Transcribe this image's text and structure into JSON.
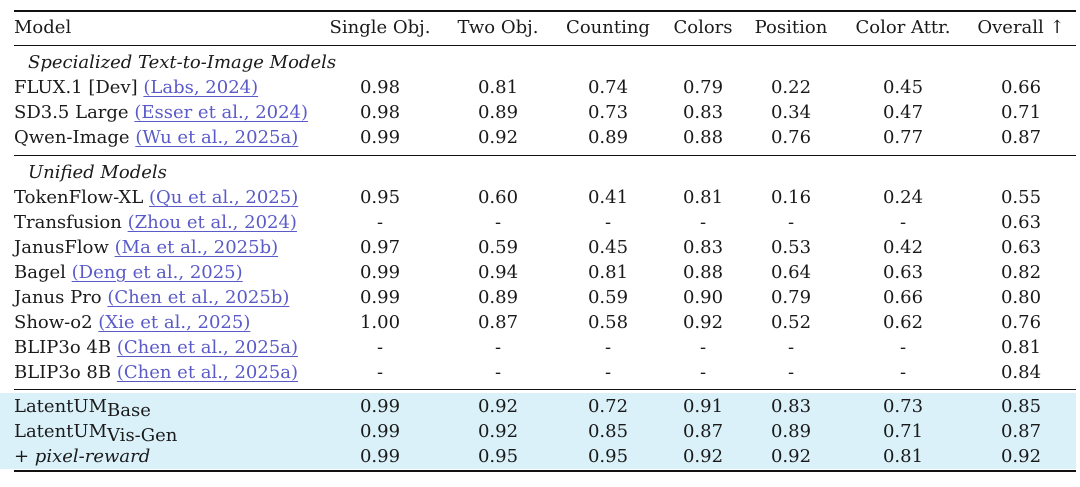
{
  "columns": [
    "Model",
    "Single Obj.",
    "Two Obj.",
    "Counting",
    "Colors",
    "Position",
    "Color Attr.",
    "Overall ↑"
  ],
  "groups": [
    {
      "title": "Specialized Text-to-Image Models",
      "rows": [
        {
          "model": "FLUX.1 [Dev]",
          "cite": "(Labs, 2024)",
          "values": [
            "0.98",
            "0.81",
            "0.74",
            "0.79",
            "0.22",
            "0.45",
            "0.66"
          ]
        },
        {
          "model": "SD3.5 Large",
          "cite": "(Esser et al., 2024)",
          "values": [
            "0.98",
            "0.89",
            "0.73",
            "0.83",
            "0.34",
            "0.47",
            "0.71"
          ]
        },
        {
          "model": "Qwen-Image",
          "cite": "(Wu et al., 2025a)",
          "values": [
            "0.99",
            "0.92",
            "0.89",
            "0.88",
            "0.76",
            "0.77",
            "0.87"
          ]
        }
      ]
    },
    {
      "title": "Unified Models",
      "rows": [
        {
          "model": "TokenFlow-XL",
          "cite": "(Qu et al., 2025)",
          "values": [
            "0.95",
            "0.60",
            "0.41",
            "0.81",
            "0.16",
            "0.24",
            "0.55"
          ]
        },
        {
          "model": "Transfusion",
          "cite": "(Zhou et al., 2024)",
          "values": [
            "-",
            "-",
            "-",
            "-",
            "-",
            "-",
            "0.63"
          ]
        },
        {
          "model": "JanusFlow",
          "cite": "(Ma et al., 2025b)",
          "values": [
            "0.97",
            "0.59",
            "0.45",
            "0.83",
            "0.53",
            "0.42",
            "0.63"
          ]
        },
        {
          "model": "Bagel",
          "cite": "(Deng et al., 2025)",
          "values": [
            "0.99",
            "0.94",
            "0.81",
            "0.88",
            "0.64",
            "0.63",
            "0.82"
          ]
        },
        {
          "model": "Janus Pro",
          "cite": "(Chen et al., 2025b)",
          "values": [
            "0.99",
            "0.89",
            "0.59",
            "0.90",
            "0.79",
            "0.66",
            "0.80"
          ]
        },
        {
          "model": "Show-o2",
          "cite": "(Xie et al., 2025)",
          "values": [
            "1.00",
            "0.87",
            "0.58",
            "0.92",
            "0.52",
            "0.62",
            "0.76"
          ]
        },
        {
          "model": "BLIP3o 4B",
          "cite": "(Chen et al., 2025a)",
          "values": [
            "-",
            "-",
            "-",
            "-",
            "-",
            "-",
            "0.81"
          ]
        },
        {
          "model": "BLIP3o 8B",
          "cite": "(Chen et al., 2025a)",
          "values": [
            "-",
            "-",
            "-",
            "-",
            "-",
            "-",
            "0.84"
          ]
        }
      ]
    }
  ],
  "ours": [
    {
      "model": "LatentUM",
      "sub": "Base",
      "values": [
        "0.99",
        "0.92",
        "0.72",
        "0.91",
        "0.83",
        "0.73",
        "0.85"
      ]
    },
    {
      "model": "LatentUM",
      "sub": "Vis-Gen",
      "values": [
        "0.99",
        "0.92",
        "0.85",
        "0.87",
        "0.89",
        "0.71",
        "0.87"
      ]
    },
    {
      "model": "+ pixel-reward",
      "sub": "",
      "values": [
        "0.99",
        "0.95",
        "0.95",
        "0.92",
        "0.92",
        "0.81",
        "0.92"
      ]
    }
  ],
  "colors": {
    "highlight": "#daf1f9",
    "citation": "#5a5ac8"
  }
}
